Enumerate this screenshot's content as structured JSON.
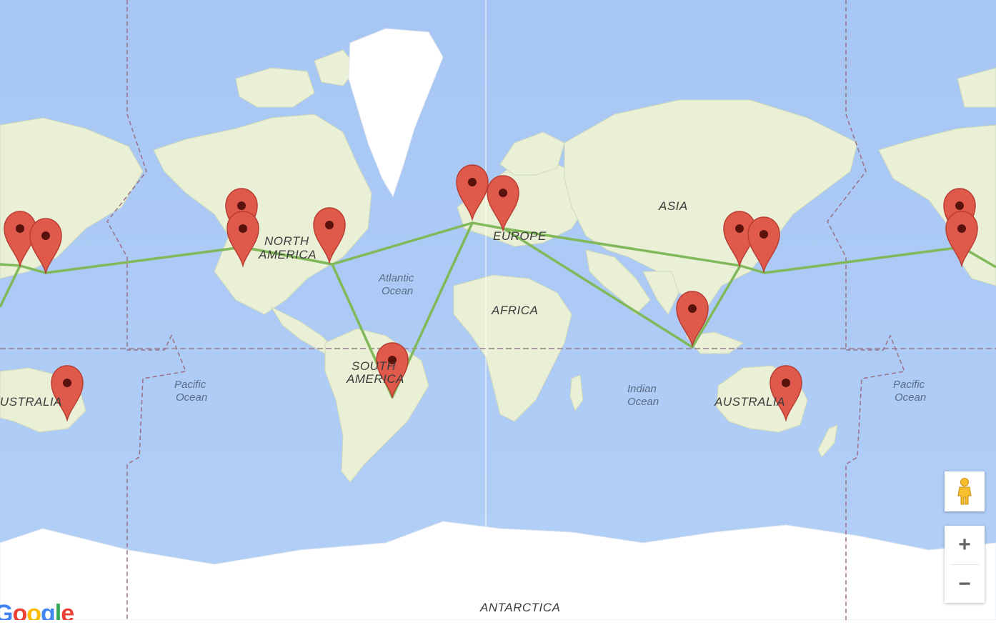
{
  "map": {
    "continent_labels": [
      "NORTH",
      "AMERICA",
      "SOUTH",
      "AMERICA",
      "EUROPE",
      "ASIA",
      "AFRICA",
      "AUSTRALIA",
      "AUSTRALIA",
      "ANTARCTICA"
    ],
    "ocean_labels": [
      "Atlantic",
      "Ocean",
      "Pacific",
      "Ocean",
      "Indian",
      "Ocean",
      "Pacific",
      "Ocean"
    ],
    "colors": {
      "water": "#a9c8f5",
      "land": "#e9f0d6",
      "ice": "#ffffff",
      "route": "#80b85a",
      "marker": "#e05a4c"
    },
    "marker_count": 16,
    "route": "green polyline connecting markers"
  },
  "controls": {
    "pegman": "street-view-pegman-icon",
    "zoom_in": "+",
    "zoom_out": "−"
  },
  "logo": {
    "text": "Google"
  }
}
